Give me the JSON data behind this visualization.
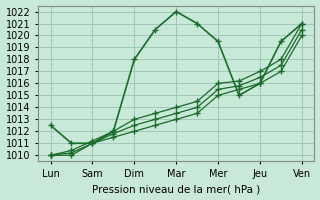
{
  "title": "",
  "xlabel": "Pression niveau de la mer( hPa )",
  "ylabel": "",
  "background_color": "#c8e8d8",
  "grid_color": "#a0c8b8",
  "line_color": "#1a6b2a",
  "x_labels": [
    "Lun",
    "Sam",
    "Dim",
    "Mar",
    "Mer",
    "Jeu",
    "Ven"
  ],
  "x_positions": [
    0,
    1,
    2,
    3,
    4,
    5,
    6
  ],
  "ylim": [
    1009.5,
    1022.5
  ],
  "yticks": [
    1010,
    1011,
    1012,
    1013,
    1014,
    1015,
    1016,
    1017,
    1018,
    1019,
    1020,
    1021,
    1022
  ],
  "series": [
    {
      "x": [
        0,
        0.5,
        1.0,
        1.5,
        2.0,
        2.5,
        3.0,
        3.5,
        4.0,
        4.5,
        5.0,
        5.5,
        6.0
      ],
      "y": [
        1012.5,
        1011.0,
        1011.0,
        1012.0,
        1018.0,
        1020.5,
        1022.0,
        1021.0,
        1019.5,
        1015.0,
        1016.0,
        1019.5,
        1021.0
      ],
      "linewidth": 1.2
    },
    {
      "x": [
        0,
        0.5,
        1.0,
        1.5,
        2.0,
        2.5,
        3.0,
        3.5,
        4.0,
        4.5,
        5.0,
        5.5,
        6.0
      ],
      "y": [
        1010.0,
        1010.0,
        1011.0,
        1011.5,
        1012.0,
        1012.5,
        1013.0,
        1013.5,
        1015.0,
        1015.5,
        1016.0,
        1017.0,
        1020.0
      ],
      "linewidth": 0.9
    },
    {
      "x": [
        0,
        0.5,
        1.0,
        1.5,
        2.0,
        2.5,
        3.0,
        3.5,
        4.0,
        4.5,
        5.0,
        5.5,
        6.0
      ],
      "y": [
        1010.0,
        1010.2,
        1011.0,
        1011.8,
        1012.5,
        1013.0,
        1013.5,
        1014.0,
        1015.5,
        1015.8,
        1016.5,
        1017.5,
        1020.5
      ],
      "linewidth": 0.9
    },
    {
      "x": [
        0,
        0.5,
        1.0,
        1.5,
        2.0,
        2.5,
        3.0,
        3.5,
        4.0,
        4.5,
        5.0,
        5.5,
        6.0
      ],
      "y": [
        1010.0,
        1010.4,
        1011.2,
        1012.0,
        1013.0,
        1013.5,
        1014.0,
        1014.5,
        1016.0,
        1016.2,
        1017.0,
        1018.0,
        1021.0
      ],
      "linewidth": 0.9
    }
  ]
}
